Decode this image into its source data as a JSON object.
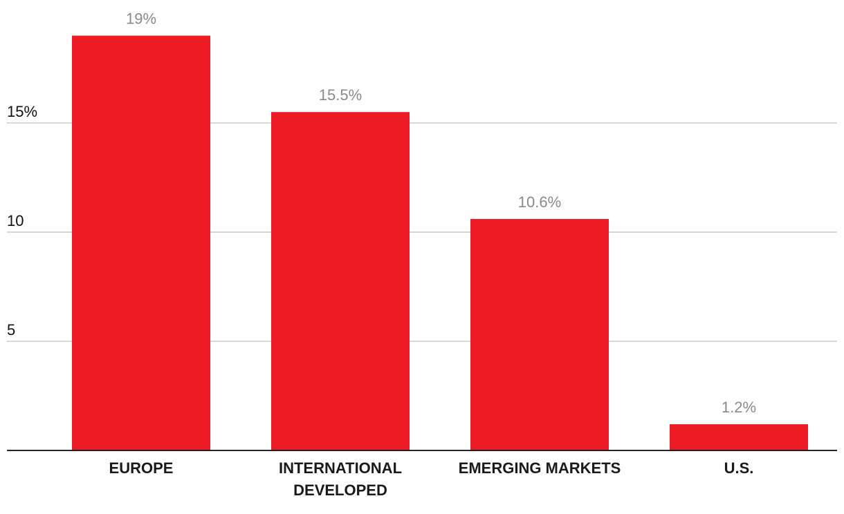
{
  "chart_data": {
    "type": "bar",
    "categories": [
      "EUROPE",
      "INTERNATIONAL DEVELOPED",
      "EMERGING MARKETS",
      "U.S."
    ],
    "category_lines": [
      [
        "EUROPE"
      ],
      [
        "INTERNATIONAL",
        "DEVELOPED"
      ],
      [
        "EMERGING MARKETS"
      ],
      [
        "U.S."
      ]
    ],
    "values": [
      19,
      15.5,
      10.6,
      1.2
    ],
    "data_labels": [
      "19%",
      "15.5%",
      "10.6%",
      "1.2%"
    ],
    "yticks": [
      5,
      10,
      15
    ],
    "ytick_labels": [
      "5",
      "10",
      "15%"
    ],
    "ylim": [
      0,
      20
    ],
    "grid": true,
    "bar_color": "#ed1c24",
    "grid_color": "#cccccc",
    "axis_color": "#222222",
    "label_color": "#8a8a8a",
    "title": "",
    "xlabel": "",
    "ylabel": ""
  }
}
